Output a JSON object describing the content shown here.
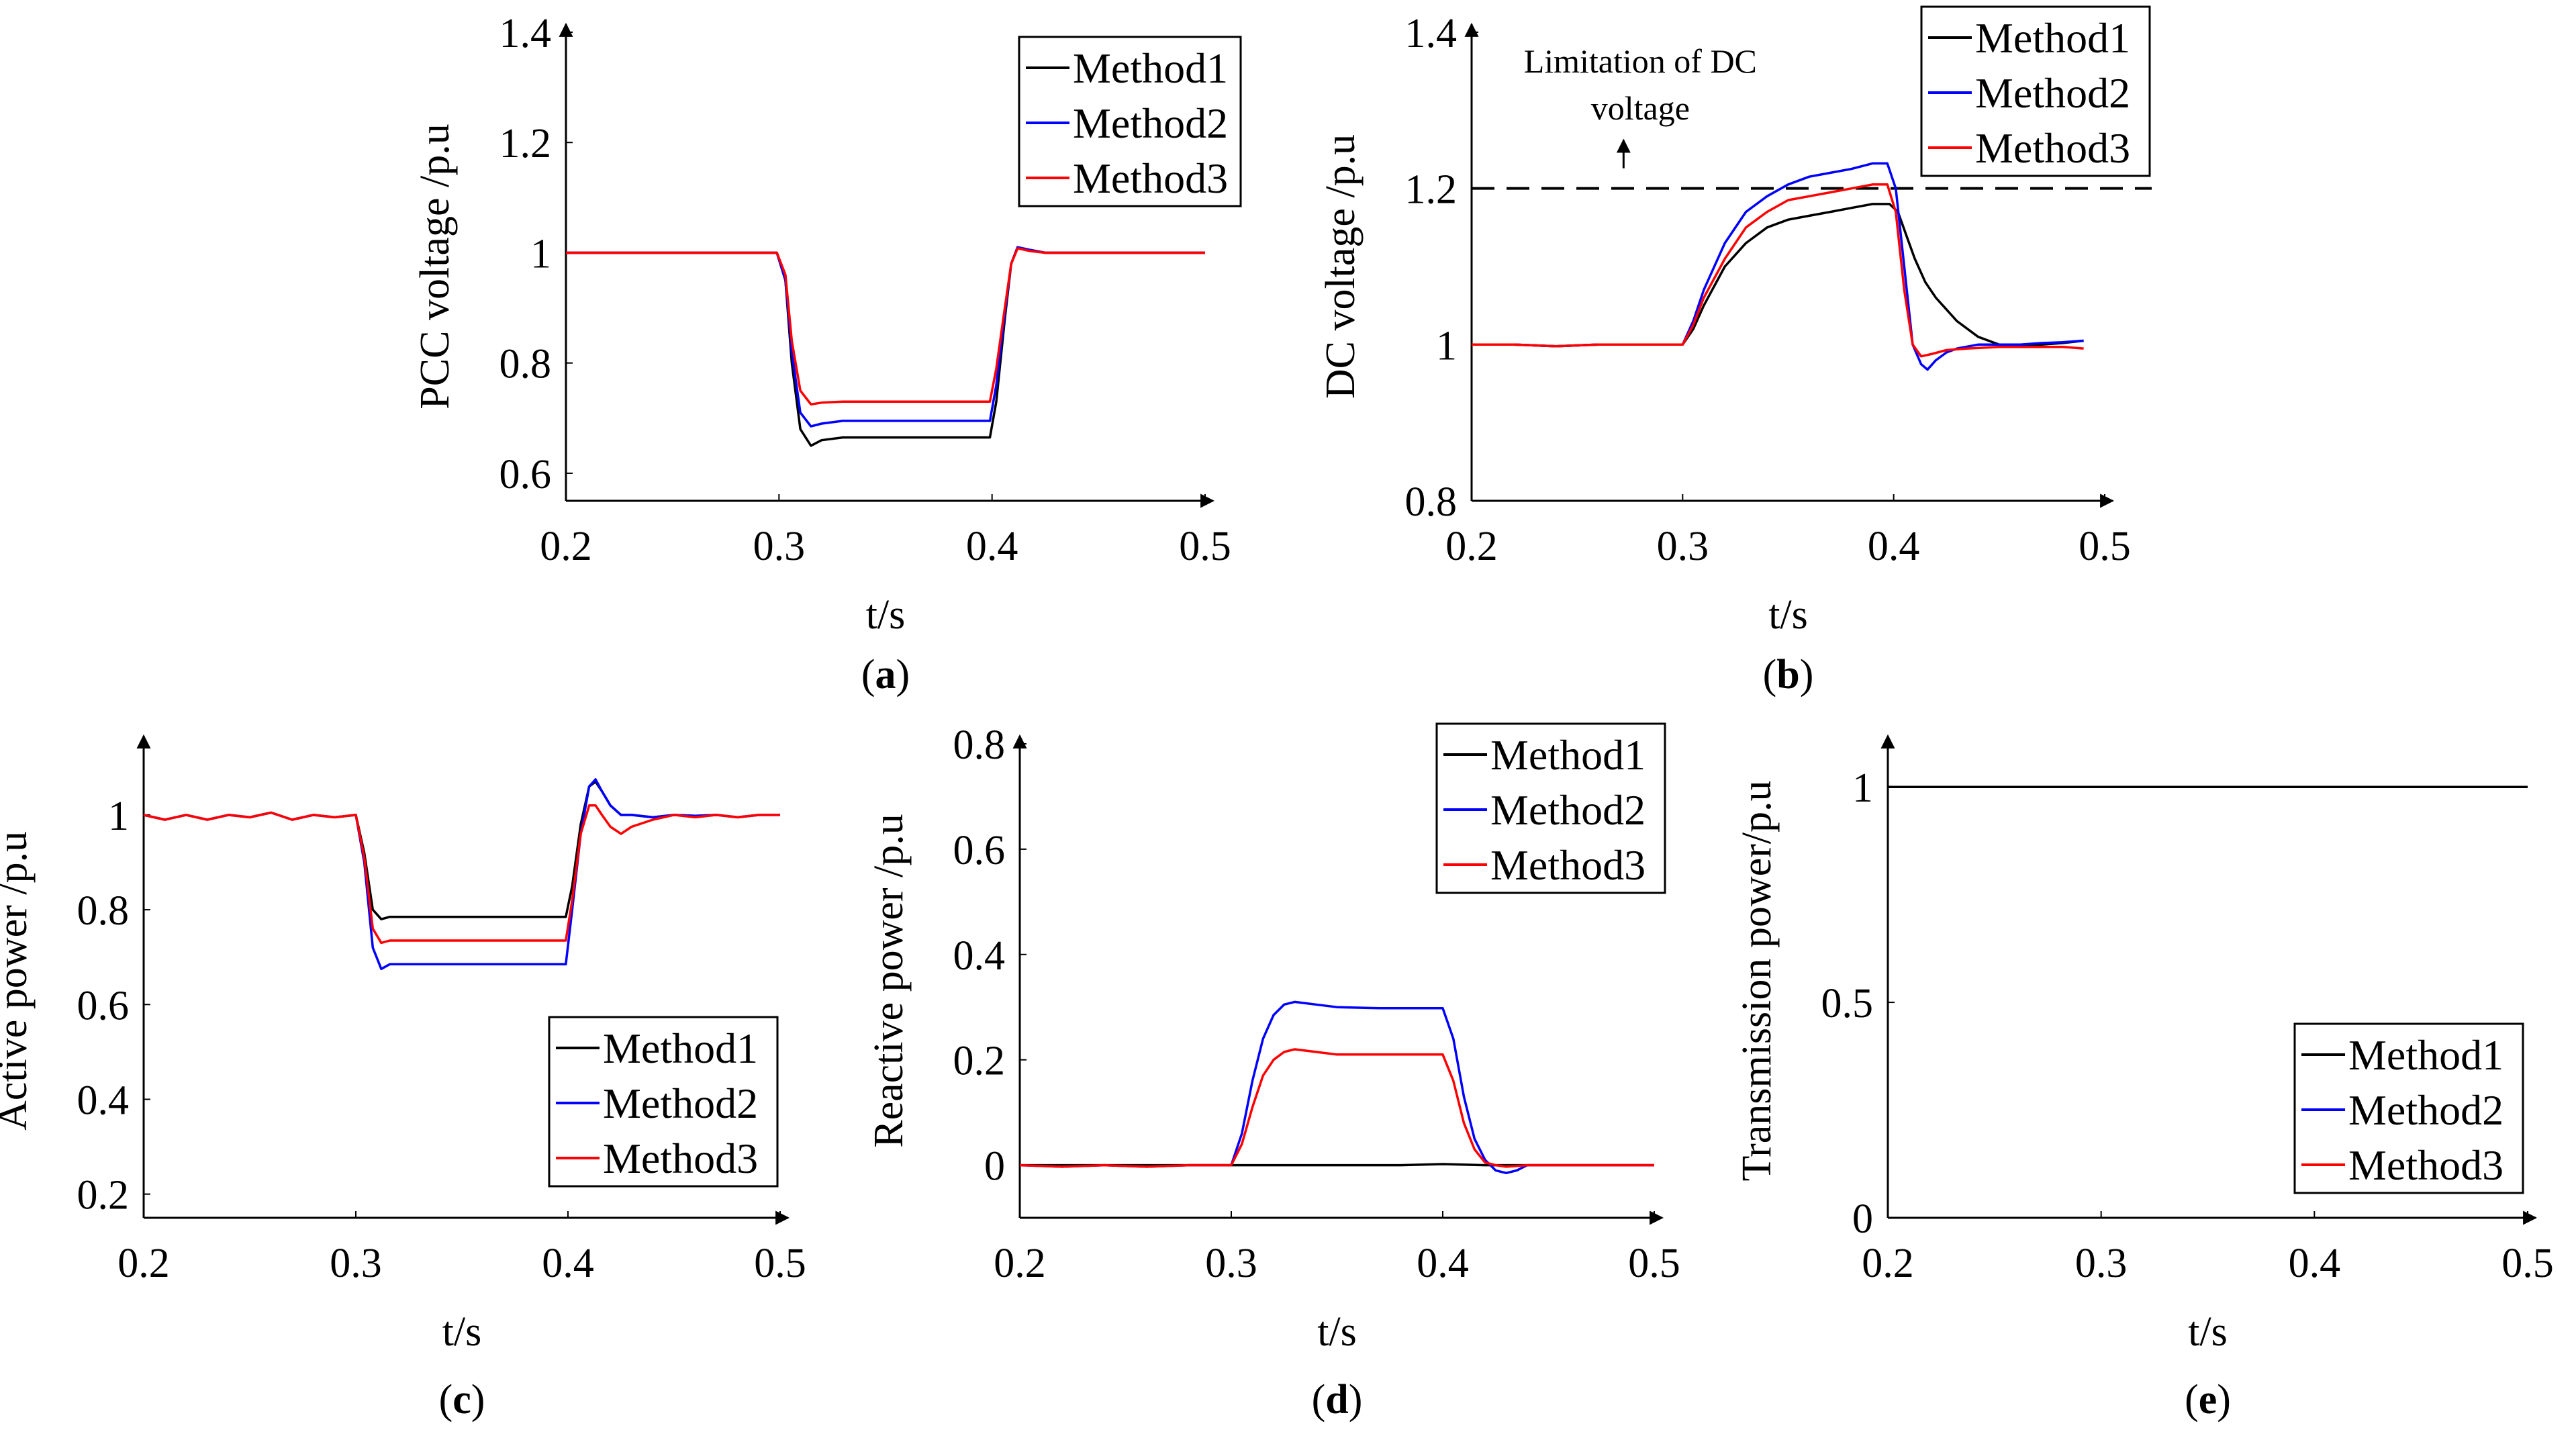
{
  "figure": {
    "description_hidden": false
  },
  "colors": {
    "Method1": "#000000",
    "Method2": "#0000ff",
    "Method3": "#ff0000",
    "axis": "#000000"
  },
  "chart_data": [
    {
      "id": "a",
      "type": "line",
      "panel_label": "a",
      "xlabel": "t/s",
      "ylabel": "PCC voltage /p.u",
      "xlim": [
        0.2,
        0.5
      ],
      "ylim": [
        0.55,
        1.4
      ],
      "xticks": [
        0.2,
        0.3,
        0.4,
        0.5
      ],
      "xtick_labels": [
        "0.2",
        "0.3",
        "0.4",
        "0.5"
      ],
      "yticks": [
        0.6,
        0.8,
        1.0,
        1.2,
        1.4
      ],
      "ytick_labels": [
        "0.6",
        "0.8",
        "1",
        "1.2",
        "1.4"
      ],
      "legend": {
        "position": "top-right",
        "entries": [
          "Method1",
          "Method2",
          "Method3"
        ]
      },
      "series": [
        {
          "name": "Method1",
          "color": "#000000",
          "x": [
            0.2,
            0.299,
            0.303,
            0.306,
            0.31,
            0.315,
            0.32,
            0.33,
            0.35,
            0.399,
            0.402,
            0.406,
            0.409,
            0.412,
            0.418,
            0.425,
            0.435,
            0.45,
            0.5
          ],
          "y": [
            1.0,
            1.0,
            0.95,
            0.8,
            0.68,
            0.65,
            0.66,
            0.665,
            0.665,
            0.665,
            0.73,
            0.88,
            0.98,
            1.01,
            1.005,
            1.0,
            1.0,
            1.0,
            1.0
          ]
        },
        {
          "name": "Method2",
          "color": "#0000ff",
          "x": [
            0.2,
            0.299,
            0.303,
            0.306,
            0.31,
            0.315,
            0.32,
            0.33,
            0.35,
            0.399,
            0.402,
            0.406,
            0.409,
            0.412,
            0.418,
            0.425,
            0.435,
            0.45,
            0.5
          ],
          "y": [
            1.0,
            1.0,
            0.95,
            0.82,
            0.71,
            0.685,
            0.69,
            0.695,
            0.695,
            0.695,
            0.76,
            0.89,
            0.98,
            1.01,
            1.005,
            1.0,
            1.0,
            1.0,
            1.0
          ]
        },
        {
          "name": "Method3",
          "color": "#ff0000",
          "x": [
            0.2,
            0.299,
            0.303,
            0.306,
            0.31,
            0.315,
            0.32,
            0.33,
            0.35,
            0.399,
            0.402,
            0.406,
            0.409,
            0.412,
            0.418,
            0.425,
            0.435,
            0.45,
            0.5
          ],
          "y": [
            1.0,
            1.0,
            0.96,
            0.84,
            0.75,
            0.725,
            0.728,
            0.73,
            0.73,
            0.73,
            0.79,
            0.9,
            0.98,
            1.008,
            1.003,
            1.0,
            1.0,
            1.0,
            1.0
          ]
        }
      ]
    },
    {
      "id": "b",
      "type": "line",
      "panel_label": "b",
      "xlabel": "t/s",
      "ylabel": "DC voltage /p.u",
      "xlim": [
        0.2,
        0.5
      ],
      "ylim": [
        0.8,
        1.4
      ],
      "xticks": [
        0.2,
        0.3,
        0.4,
        0.5
      ],
      "xtick_labels": [
        "0.2",
        "0.3",
        "0.4",
        "0.5"
      ],
      "yticks": [
        0.8,
        1.0,
        1.2,
        1.4
      ],
      "ytick_labels": [
        "0.8",
        "1",
        "1.2",
        "1.4"
      ],
      "legend": {
        "position": "top-right",
        "entries": [
          "Method1",
          "Method2",
          "Method3"
        ]
      },
      "limit_line": {
        "y": 1.2,
        "label_lines": [
          "Limitation of DC",
          "voltage"
        ],
        "arrow_x": 0.272
      },
      "series": [
        {
          "name": "Method1",
          "color": "#000000",
          "x": [
            0.2,
            0.22,
            0.24,
            0.26,
            0.28,
            0.3,
            0.305,
            0.31,
            0.32,
            0.33,
            0.34,
            0.35,
            0.36,
            0.37,
            0.38,
            0.39,
            0.398,
            0.402,
            0.406,
            0.41,
            0.415,
            0.42,
            0.43,
            0.44,
            0.45,
            0.46,
            0.47,
            0.48,
            0.49
          ],
          "y": [
            1.0,
            1.0,
            0.998,
            1.0,
            1.0,
            1.0,
            1.02,
            1.05,
            1.1,
            1.13,
            1.15,
            1.16,
            1.165,
            1.17,
            1.175,
            1.18,
            1.18,
            1.17,
            1.14,
            1.11,
            1.08,
            1.06,
            1.03,
            1.01,
            1.0,
            1.0,
            1.0,
            1.002,
            1.005
          ]
        },
        {
          "name": "Method2",
          "color": "#0000ff",
          "x": [
            0.2,
            0.22,
            0.24,
            0.26,
            0.28,
            0.3,
            0.305,
            0.31,
            0.32,
            0.33,
            0.34,
            0.35,
            0.36,
            0.37,
            0.38,
            0.39,
            0.397,
            0.401,
            0.405,
            0.409,
            0.413,
            0.416,
            0.42,
            0.425,
            0.43,
            0.44,
            0.45,
            0.46,
            0.47,
            0.48,
            0.49
          ],
          "y": [
            1.0,
            1.0,
            0.998,
            1.0,
            1.0,
            1.0,
            1.03,
            1.07,
            1.13,
            1.17,
            1.19,
            1.205,
            1.215,
            1.22,
            1.225,
            1.232,
            1.232,
            1.2,
            1.1,
            1.0,
            0.975,
            0.968,
            0.98,
            0.99,
            0.995,
            1.0,
            1.0,
            1.0,
            1.002,
            1.003,
            1.005
          ]
        },
        {
          "name": "Method3",
          "color": "#ff0000",
          "x": [
            0.2,
            0.22,
            0.24,
            0.26,
            0.28,
            0.3,
            0.305,
            0.31,
            0.32,
            0.33,
            0.34,
            0.35,
            0.36,
            0.37,
            0.38,
            0.39,
            0.397,
            0.401,
            0.405,
            0.409,
            0.413,
            0.418,
            0.425,
            0.435,
            0.45,
            0.46,
            0.47,
            0.48,
            0.49
          ],
          "y": [
            1.0,
            1.0,
            0.998,
            1.0,
            1.0,
            1.0,
            1.025,
            1.06,
            1.11,
            1.15,
            1.17,
            1.185,
            1.19,
            1.195,
            1.2,
            1.205,
            1.205,
            1.17,
            1.07,
            1.0,
            0.985,
            0.988,
            0.993,
            0.995,
            0.997,
            0.997,
            0.997,
            0.997,
            0.995
          ]
        }
      ]
    },
    {
      "id": "c",
      "type": "line",
      "panel_label": "c",
      "xlabel": "t/s",
      "ylabel": "Active power /p.u",
      "xlim": [
        0.2,
        0.5
      ],
      "ylim": [
        0.15,
        1.15
      ],
      "xticks": [
        0.2,
        0.3,
        0.4,
        0.5
      ],
      "xtick_labels": [
        "0.2",
        "0.3",
        "0.4",
        "0.5"
      ],
      "yticks": [
        0.2,
        0.4,
        0.6,
        0.8,
        1.0
      ],
      "ytick_labels": [
        "0.2",
        "0.4",
        "0.6",
        "0.8",
        "1"
      ],
      "legend": {
        "position": "bottom-right",
        "entries": [
          "Method1",
          "Method2",
          "Method3"
        ]
      },
      "series": [
        {
          "name": "Method1",
          "color": "#000000",
          "x": [
            0.2,
            0.21,
            0.22,
            0.23,
            0.24,
            0.25,
            0.26,
            0.27,
            0.28,
            0.29,
            0.3,
            0.304,
            0.308,
            0.312,
            0.316,
            0.32,
            0.33,
            0.35,
            0.399,
            0.402,
            0.406,
            0.41,
            0.413,
            0.416,
            0.42,
            0.425,
            0.43,
            0.44,
            0.45,
            0.46,
            0.47,
            0.48,
            0.49,
            0.5
          ],
          "y": [
            1.0,
            0.99,
            1.0,
            0.99,
            1.0,
            0.995,
            1.005,
            0.99,
            1.0,
            0.995,
            1.0,
            0.92,
            0.8,
            0.78,
            0.785,
            0.785,
            0.785,
            0.785,
            0.785,
            0.85,
            0.98,
            1.06,
            1.07,
            1.05,
            1.02,
            1.0,
            1.0,
            0.995,
            1.0,
            0.998,
            1.0,
            0.995,
            1.0,
            1.0
          ]
        },
        {
          "name": "Method2",
          "color": "#0000ff",
          "x": [
            0.2,
            0.21,
            0.22,
            0.23,
            0.24,
            0.25,
            0.26,
            0.27,
            0.28,
            0.29,
            0.3,
            0.304,
            0.308,
            0.312,
            0.316,
            0.32,
            0.33,
            0.35,
            0.399,
            0.402,
            0.406,
            0.41,
            0.413,
            0.416,
            0.42,
            0.425,
            0.43,
            0.44,
            0.45,
            0.46,
            0.47,
            0.48,
            0.49,
            0.5
          ],
          "y": [
            1.0,
            0.99,
            1.0,
            0.99,
            1.0,
            0.995,
            1.005,
            0.99,
            1.0,
            0.995,
            1.0,
            0.9,
            0.72,
            0.675,
            0.685,
            0.685,
            0.685,
            0.685,
            0.685,
            0.8,
            0.96,
            1.06,
            1.075,
            1.05,
            1.02,
            1.0,
            1.0,
            0.995,
            1.0,
            0.998,
            1.0,
            0.995,
            1.0,
            1.0
          ]
        },
        {
          "name": "Method3",
          "color": "#ff0000",
          "x": [
            0.2,
            0.21,
            0.22,
            0.23,
            0.24,
            0.25,
            0.26,
            0.27,
            0.28,
            0.29,
            0.3,
            0.304,
            0.308,
            0.312,
            0.316,
            0.32,
            0.33,
            0.35,
            0.399,
            0.402,
            0.406,
            0.41,
            0.413,
            0.416,
            0.42,
            0.425,
            0.43,
            0.44,
            0.45,
            0.46,
            0.47,
            0.48,
            0.49,
            0.5
          ],
          "y": [
            1.0,
            0.99,
            1.0,
            0.99,
            1.0,
            0.995,
            1.005,
            0.99,
            1.0,
            0.995,
            1.0,
            0.91,
            0.76,
            0.73,
            0.735,
            0.735,
            0.735,
            0.735,
            0.735,
            0.82,
            0.96,
            1.02,
            1.02,
            1.0,
            0.975,
            0.96,
            0.975,
            0.99,
            1.0,
            0.995,
            1.0,
            0.995,
            1.0,
            1.0
          ]
        }
      ]
    },
    {
      "id": "d",
      "type": "line",
      "panel_label": "d",
      "xlabel": "t/s",
      "ylabel": "Reactive power /p.u",
      "xlim": [
        0.2,
        0.5
      ],
      "ylim": [
        -0.1,
        0.8
      ],
      "xticks": [
        0.2,
        0.3,
        0.4,
        0.5
      ],
      "xtick_labels": [
        "0.2",
        "0.3",
        "0.4",
        "0.5"
      ],
      "yticks": [
        0.0,
        0.2,
        0.4,
        0.6,
        0.8
      ],
      "ytick_labels": [
        "0",
        "0.2",
        "0.4",
        "0.6",
        "0.8"
      ],
      "legend": {
        "position": "top-right",
        "entries": [
          "Method1",
          "Method2",
          "Method3"
        ]
      },
      "series": [
        {
          "name": "Method1",
          "color": "#000000",
          "x": [
            0.2,
            0.22,
            0.24,
            0.26,
            0.28,
            0.3,
            0.32,
            0.34,
            0.36,
            0.38,
            0.4,
            0.42,
            0.44,
            0.46,
            0.48,
            0.5
          ],
          "y": [
            0.0,
            0.0,
            0.0,
            0.0,
            0.0,
            0.0,
            0.0,
            0.0,
            0.0,
            0.0,
            0.002,
            0.0,
            0.0,
            0.0,
            0.0,
            0.0
          ]
        },
        {
          "name": "Method2",
          "color": "#0000ff",
          "x": [
            0.2,
            0.22,
            0.24,
            0.26,
            0.28,
            0.3,
            0.305,
            0.31,
            0.315,
            0.32,
            0.325,
            0.33,
            0.34,
            0.35,
            0.37,
            0.4,
            0.405,
            0.41,
            0.415,
            0.42,
            0.425,
            0.43,
            0.435,
            0.44,
            0.45,
            0.46,
            0.48,
            0.5
          ],
          "y": [
            0.0,
            -0.003,
            0.0,
            -0.003,
            0.0,
            0.0,
            0.06,
            0.16,
            0.24,
            0.285,
            0.305,
            0.31,
            0.305,
            0.3,
            0.298,
            0.298,
            0.24,
            0.13,
            0.05,
            0.01,
            -0.01,
            -0.015,
            -0.01,
            0.0,
            0.0,
            0.0,
            0.0,
            0.0
          ]
        },
        {
          "name": "Method3",
          "color": "#ff0000",
          "x": [
            0.2,
            0.22,
            0.24,
            0.26,
            0.28,
            0.3,
            0.305,
            0.31,
            0.315,
            0.32,
            0.325,
            0.33,
            0.34,
            0.35,
            0.37,
            0.4,
            0.405,
            0.41,
            0.415,
            0.42,
            0.425,
            0.43,
            0.44,
            0.45,
            0.46,
            0.48,
            0.5
          ],
          "y": [
            0.0,
            -0.003,
            0.0,
            -0.003,
            0.0,
            0.0,
            0.04,
            0.11,
            0.17,
            0.2,
            0.215,
            0.22,
            0.215,
            0.21,
            0.21,
            0.21,
            0.16,
            0.08,
            0.03,
            0.005,
            0.0,
            -0.003,
            0.0,
            0.0,
            0.0,
            0.0,
            0.0
          ]
        }
      ]
    },
    {
      "id": "e",
      "type": "line",
      "panel_label": "e",
      "xlabel": "t/s",
      "ylabel": "Transmission power/p.u",
      "xlim": [
        0.2,
        0.5
      ],
      "ylim": [
        0.0,
        1.1
      ],
      "xticks": [
        0.2,
        0.3,
        0.4,
        0.5
      ],
      "xtick_labels": [
        "0.2",
        "0.3",
        "0.4",
        "0.5"
      ],
      "yticks": [
        0.0,
        0.5,
        1.0
      ],
      "ytick_labels": [
        "0",
        "0.5",
        "1"
      ],
      "legend": {
        "position": "bottom-right",
        "entries": [
          "Method1",
          "Method2",
          "Method3"
        ]
      },
      "series": [
        {
          "name": "Method3",
          "color": "#ff0000",
          "x": [
            0.2,
            0.5
          ],
          "y": [
            1.0,
            1.0
          ]
        },
        {
          "name": "Method2",
          "color": "#0000ff",
          "x": [
            0.2,
            0.5
          ],
          "y": [
            1.0,
            1.0
          ]
        },
        {
          "name": "Method1",
          "color": "#000000",
          "x": [
            0.2,
            0.5
          ],
          "y": [
            1.0,
            1.0
          ]
        }
      ]
    }
  ]
}
